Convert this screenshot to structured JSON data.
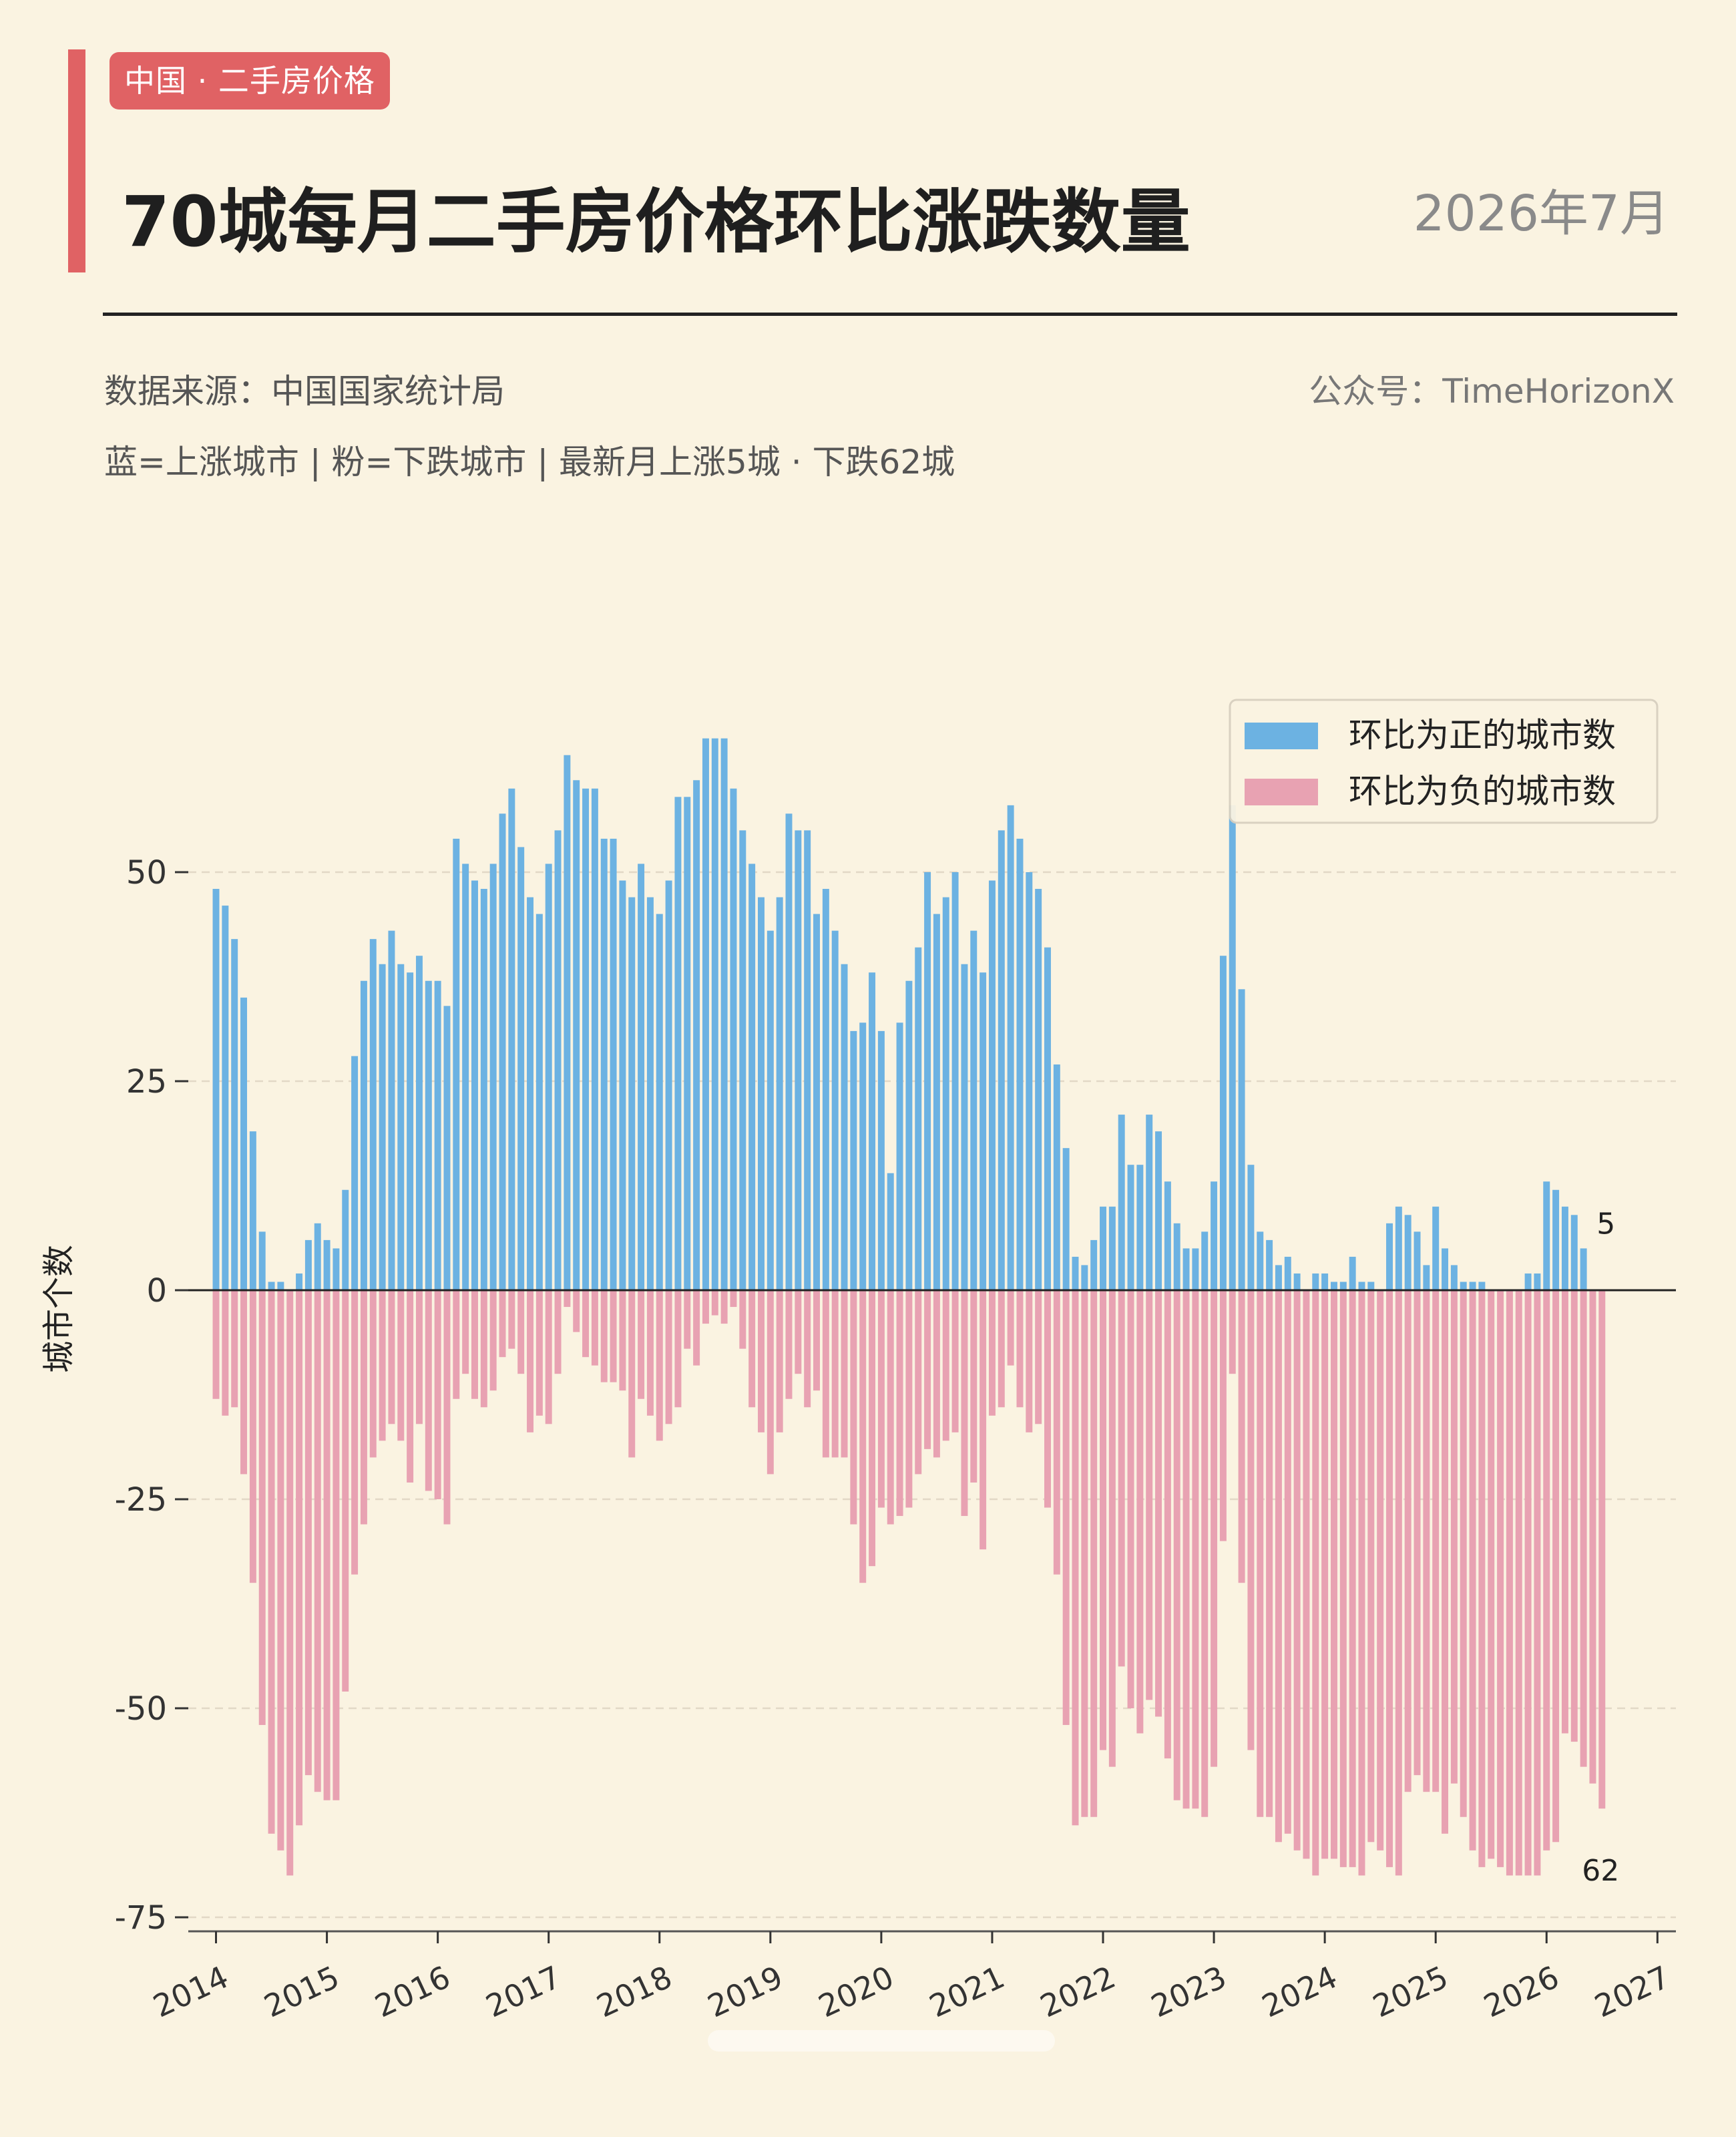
{
  "header": {
    "tag": "中国 · 二手房价格",
    "title": "70城每月二手房价格环比涨跌数量",
    "date": "2026年7月",
    "source": "数据来源：中国国家统计局",
    "account": "公众号：TimeHorizonX",
    "legend_note": "蓝=上涨城市 | 粉=下跌城市 | 最新月上涨5城 · 下跌62城"
  },
  "colors": {
    "up": "#6cb2e2",
    "down": "#e8a2b2",
    "accent": "#e06264",
    "background": "#faf3e1"
  },
  "chart_data": {
    "type": "bar",
    "ylabel": "城市个数",
    "ylim": [
      -75,
      70
    ],
    "yticks": [
      50,
      25,
      0,
      -25,
      -50,
      -75
    ],
    "x_start": "2014-01",
    "xlim": [
      "2013-10",
      "2027-03"
    ],
    "xticks": [
      "2014",
      "2015",
      "2016",
      "2017",
      "2018",
      "2019",
      "2020",
      "2021",
      "2022",
      "2023",
      "2024",
      "2025",
      "2026",
      "2027"
    ],
    "grid": true,
    "legend_position": "top-right",
    "series": [
      {
        "name": "环比为正的城市数",
        "values": [
          48,
          46,
          42,
          35,
          19,
          7,
          1,
          1,
          0,
          2,
          6,
          8,
          6,
          5,
          12,
          28,
          37,
          42,
          39,
          43,
          39,
          38,
          40,
          37,
          37,
          34,
          54,
          51,
          49,
          48,
          51,
          57,
          60,
          53,
          47,
          45,
          51,
          55,
          64,
          61,
          60,
          60,
          54,
          54,
          49,
          47,
          51,
          47,
          45,
          49,
          59,
          59,
          61,
          66,
          66,
          66,
          60,
          55,
          51,
          47,
          43,
          47,
          57,
          55,
          55,
          45,
          48,
          43,
          39,
          31,
          32,
          38,
          31,
          14,
          32,
          37,
          41,
          50,
          45,
          47,
          50,
          39,
          43,
          38,
          49,
          55,
          58,
          54,
          50,
          48,
          41,
          27,
          17,
          4,
          3,
          6,
          10,
          10,
          21,
          15,
          15,
          21,
          19,
          13,
          8,
          5,
          5,
          7,
          13,
          40,
          58,
          36,
          15,
          7,
          6,
          3,
          4,
          2,
          0,
          2,
          2,
          1,
          1,
          4,
          1,
          1,
          0,
          8,
          10,
          9,
          7,
          3,
          10,
          5,
          3,
          1,
          1,
          1,
          0,
          0,
          0,
          0,
          2,
          2,
          13,
          12,
          10,
          9,
          5
        ]
      },
      {
        "name": "环比为负的城市数",
        "values": [
          -13,
          -15,
          -14,
          -22,
          -35,
          -52,
          -65,
          -67,
          -70,
          -64,
          -58,
          -60,
          -61,
          -61,
          -48,
          -34,
          -28,
          -20,
          -18,
          -16,
          -18,
          -23,
          -16,
          -24,
          -25,
          -28,
          -13,
          -10,
          -13,
          -14,
          -12,
          -8,
          -7,
          -10,
          -17,
          -15,
          -16,
          -10,
          -2,
          -5,
          -8,
          -9,
          -11,
          -11,
          -12,
          -20,
          -13,
          -15,
          -18,
          -16,
          -14,
          -7,
          -9,
          -4,
          -3,
          -4,
          -2,
          -7,
          -14,
          -17,
          -22,
          -17,
          -13,
          -10,
          -14,
          -12,
          -20,
          -20,
          -20,
          -28,
          -35,
          -33,
          -26,
          -28,
          -27,
          -26,
          -22,
          -19,
          -20,
          -18,
          -17,
          -27,
          -23,
          -31,
          -15,
          -14,
          -9,
          -14,
          -17,
          -16,
          -26,
          -34,
          -52,
          -64,
          -63,
          -63,
          -55,
          -57,
          -45,
          -50,
          -53,
          -49,
          -51,
          -56,
          -61,
          -62,
          -62,
          -63,
          -57,
          -30,
          -10,
          -35,
          -55,
          -63,
          -63,
          -66,
          -65,
          -67,
          -68,
          -70,
          -68,
          -68,
          -69,
          -69,
          -70,
          -66,
          -67,
          -69,
          -70,
          -60,
          -58,
          -60,
          -60,
          -65,
          -59,
          -63,
          -67,
          -69,
          -68,
          -69,
          -70,
          -70,
          -70,
          -70,
          -67,
          -66,
          -53,
          -54,
          -57,
          -59,
          -62
        ]
      }
    ],
    "annotations": [
      {
        "text": "5",
        "x": "2026-07",
        "y": 5
      },
      {
        "text": "62",
        "x": "2026-07",
        "y": -62
      }
    ]
  }
}
